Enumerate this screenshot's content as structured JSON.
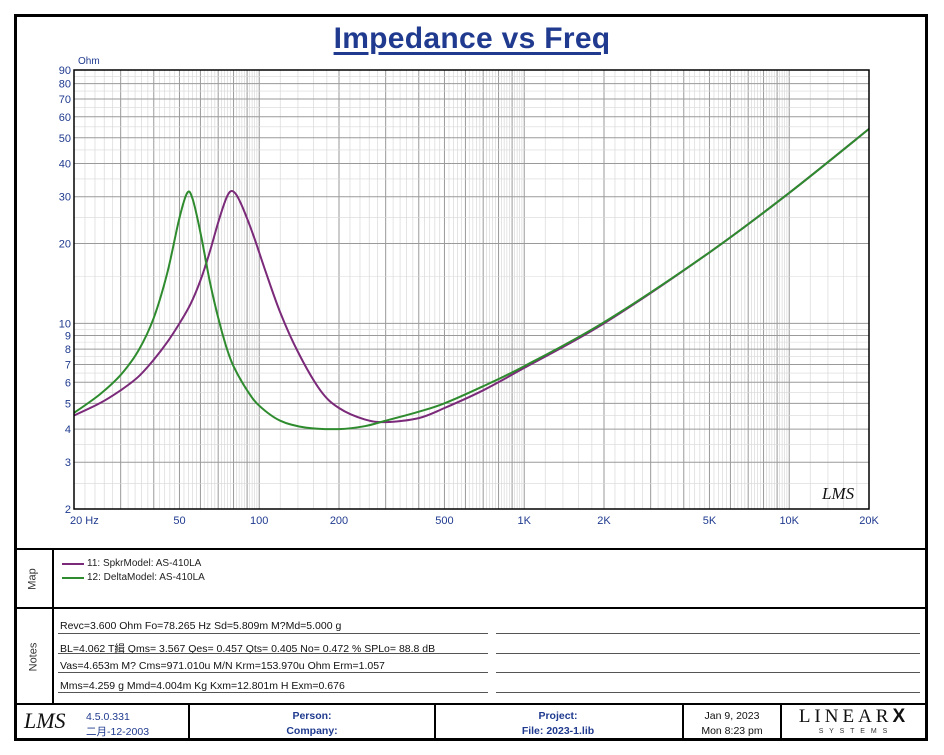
{
  "chart_data": {
    "type": "line",
    "title": "Impedance vs Freq",
    "ylabel": "Ohm",
    "x_scale": "log",
    "y_scale": "log",
    "xlim": [
      20,
      20000
    ],
    "ylim": [
      2,
      90
    ],
    "x_tick_labels": [
      "20 Hz",
      "50",
      "100",
      "200",
      "500",
      "1K",
      "2K",
      "5K",
      "10K",
      "20K"
    ],
    "x_tick_values": [
      20,
      50,
      100,
      200,
      500,
      1000,
      2000,
      5000,
      10000,
      20000
    ],
    "y_tick_labels": [
      "2",
      "3",
      "4",
      "5",
      "6",
      "7",
      "8",
      "9",
      "10",
      "20",
      "30",
      "40",
      "50",
      "60",
      "70",
      "80",
      "90"
    ],
    "y_tick_values": [
      2,
      3,
      4,
      5,
      6,
      7,
      8,
      9,
      10,
      20,
      30,
      40,
      50,
      60,
      70,
      80,
      90
    ],
    "grid": true,
    "series": [
      {
        "name": "11: SpkrModel: AS-410LA",
        "color": "#7b2a7a",
        "x": [
          20,
          25,
          30,
          35,
          40,
          45,
          50,
          55,
          60,
          65,
          70,
          75,
          78.3,
          82,
          87,
          95,
          105,
          120,
          140,
          170,
          200,
          250,
          300,
          400,
          500,
          700,
          1000,
          2000,
          5000,
          10000,
          20000
        ],
        "y": [
          4.5,
          5.0,
          5.6,
          6.3,
          7.3,
          8.5,
          10.0,
          11.8,
          14.5,
          18.5,
          24.0,
          29.5,
          31.5,
          30.5,
          27.0,
          21.5,
          16.0,
          11.0,
          7.8,
          5.6,
          4.8,
          4.35,
          4.25,
          4.4,
          4.8,
          5.6,
          6.8,
          10.0,
          18.5,
          31.0,
          54.0
        ]
      },
      {
        "name": "12: DeltaModel: AS-410LA",
        "color": "#2e8b2e",
        "x": [
          20,
          25,
          30,
          35,
          40,
          45,
          50,
          53.5,
          56,
          60,
          65,
          70,
          75,
          80,
          90,
          100,
          120,
          150,
          200,
          250,
          300,
          400,
          500,
          700,
          1000,
          2000,
          5000,
          10000,
          20000
        ],
        "y": [
          4.6,
          5.4,
          6.4,
          7.9,
          10.5,
          15.5,
          25.0,
          31.0,
          29.5,
          22.0,
          14.5,
          10.5,
          8.2,
          6.9,
          5.6,
          4.9,
          4.3,
          4.05,
          4.0,
          4.1,
          4.3,
          4.65,
          5.0,
          5.8,
          6.9,
          10.1,
          18.5,
          31.0,
          54.0
        ]
      }
    ]
  },
  "logo": {
    "text": "LMS"
  },
  "map": {
    "label": "Map",
    "entries": [
      {
        "text": "11: SpkrModel: AS-410LA",
        "color": "#7b2a7a"
      },
      {
        "text": "12: DeltaModel: AS-410LA",
        "color": "#2e8b2e"
      }
    ]
  },
  "notes": {
    "label": "Notes",
    "lines": [
      "Revc=3.600 Ohm  Fo=78.265 Hz  Sd=5.809m M?Md=5.000 g",
      "BL=4.062 T緝  Qms= 3.567  Qes= 0.457  Qts= 0.405  No= 0.472 %  SPLo= 88.8 dB",
      "Vas=4.653m M? Cms=971.010u M/N  Krm=153.970u Ohm  Erm=1.057",
      "Mms=4.259 g  Mmd=4.004m Kg  Kxm=12.801m H  Exm=0.676"
    ]
  },
  "footer": {
    "logo": "LMS",
    "version": "4.5.0.331",
    "version_date": "二月-12-2003",
    "person": "Person:",
    "company": "Company:",
    "project": "Project:",
    "file": "File: 2023-1.lib",
    "date": "Jan  9, 2023",
    "time": "Mon  8:23 pm",
    "brand_main": "LINEAR",
    "brand_x": "X",
    "brand_sub": "S Y S T E M S"
  }
}
